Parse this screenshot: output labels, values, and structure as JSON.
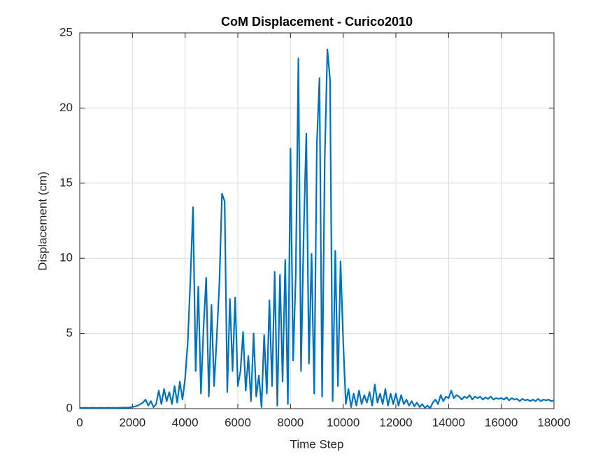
{
  "chart_data": {
    "type": "line",
    "title": "CoM Displacement - Curico2010",
    "x_label": "Time Step",
    "y_label": "Displacement (cm)",
    "x": [
      0,
      100,
      200,
      300,
      400,
      500,
      600,
      700,
      800,
      900,
      1000,
      1100,
      1200,
      1300,
      1400,
      1500,
      1600,
      1700,
      1800,
      1900,
      2000,
      2100,
      2200,
      2300,
      2400,
      2500,
      2600,
      2700,
      2800,
      2900,
      3000,
      3100,
      3200,
      3300,
      3400,
      3500,
      3600,
      3700,
      3800,
      3900,
      4000,
      4100,
      4200,
      4300,
      4400,
      4500,
      4600,
      4700,
      4800,
      4900,
      5000,
      5100,
      5200,
      5300,
      5400,
      5500,
      5600,
      5700,
      5800,
      5900,
      6000,
      6100,
      6200,
      6300,
      6400,
      6500,
      6600,
      6700,
      6800,
      6900,
      7000,
      7100,
      7200,
      7300,
      7400,
      7500,
      7600,
      7700,
      7800,
      7900,
      8000,
      8100,
      8200,
      8300,
      8400,
      8500,
      8600,
      8700,
      8800,
      8900,
      9000,
      9100,
      9200,
      9300,
      9400,
      9500,
      9600,
      9700,
      9800,
      9900,
      10000,
      10100,
      10200,
      10300,
      10400,
      10500,
      10600,
      10700,
      10800,
      10900,
      11000,
      11100,
      11200,
      11300,
      11400,
      11500,
      11600,
      11700,
      11800,
      11900,
      12000,
      12100,
      12200,
      12300,
      12400,
      12500,
      12600,
      12700,
      12800,
      12900,
      13000,
      13100,
      13200,
      13300,
      13400,
      13500,
      13600,
      13700,
      13800,
      13900,
      14000,
      14100,
      14200,
      14300,
      14400,
      14500,
      14600,
      14700,
      14800,
      14900,
      15000,
      15100,
      15200,
      15300,
      15400,
      15500,
      15600,
      15700,
      15800,
      15900,
      16000,
      16100,
      16200,
      16300,
      16400,
      16500,
      16600,
      16700,
      16800,
      16900,
      17000,
      17100,
      17200,
      17300,
      17400,
      17500,
      17600,
      17700,
      17800,
      17900,
      18000
    ],
    "series": [
      {
        "name": "CoM Displacement",
        "color": "#0072BD",
        "values": [
          0.05,
          0.05,
          0.06,
          0.05,
          0.05,
          0.06,
          0.05,
          0.05,
          0.06,
          0.05,
          0.05,
          0.06,
          0.05,
          0.06,
          0.05,
          0.06,
          0.06,
          0.07,
          0.06,
          0.08,
          0.1,
          0.15,
          0.2,
          0.3,
          0.4,
          0.6,
          0.2,
          0.5,
          0.1,
          0.3,
          1.2,
          0.3,
          1.3,
          0.5,
          1.1,
          0.3,
          1.5,
          0.4,
          1.8,
          0.6,
          2.0,
          4.4,
          8.6,
          13.4,
          2.5,
          8.1,
          1.0,
          5.4,
          8.7,
          0.8,
          6.9,
          1.5,
          4.7,
          8.3,
          14.3,
          13.8,
          1.1,
          7.3,
          2.5,
          7.4,
          1.5,
          2.5,
          5.1,
          1.2,
          3.5,
          0.5,
          5.0,
          0.8,
          2.2,
          0.1,
          4.9,
          1.0,
          7.2,
          1.5,
          9.1,
          0.2,
          8.9,
          1.8,
          9.9,
          0.3,
          17.3,
          3.2,
          8.9,
          23.3,
          2.5,
          11.6,
          18.3,
          3.0,
          10.3,
          1.0,
          17.6,
          22.0,
          0.8,
          16.6,
          23.9,
          21.9,
          0.5,
          10.5,
          1.5,
          9.8,
          4.5,
          0.3,
          1.3,
          0.1,
          1.0,
          0.2,
          1.2,
          0.3,
          0.9,
          0.4,
          1.1,
          0.2,
          1.6,
          0.4,
          1.0,
          0.3,
          1.3,
          0.2,
          1.0,
          0.3,
          1.0,
          0.2,
          0.9,
          0.3,
          0.6,
          0.2,
          0.5,
          0.15,
          0.4,
          0.1,
          0.3,
          0.05,
          0.2,
          0.02,
          0.4,
          0.6,
          0.3,
          0.9,
          0.5,
          0.8,
          0.7,
          1.2,
          0.7,
          0.9,
          0.8,
          0.6,
          0.8,
          0.7,
          0.9,
          0.6,
          0.8,
          0.7,
          0.8,
          0.6,
          0.75,
          0.65,
          0.8,
          0.6,
          0.7,
          0.65,
          0.7,
          0.6,
          0.75,
          0.55,
          0.7,
          0.6,
          0.65,
          0.5,
          0.65,
          0.55,
          0.6,
          0.5,
          0.6,
          0.5,
          0.65,
          0.5,
          0.6,
          0.55,
          0.6,
          0.5,
          0.55
        ]
      }
    ],
    "xlim": [
      0,
      18000
    ],
    "xticks": [
      0,
      2000,
      4000,
      6000,
      8000,
      10000,
      12000,
      14000,
      16000,
      18000
    ],
    "ylim": [
      0,
      25
    ],
    "yticks": [
      0,
      5,
      10,
      15,
      20,
      25
    ],
    "grid": true
  }
}
